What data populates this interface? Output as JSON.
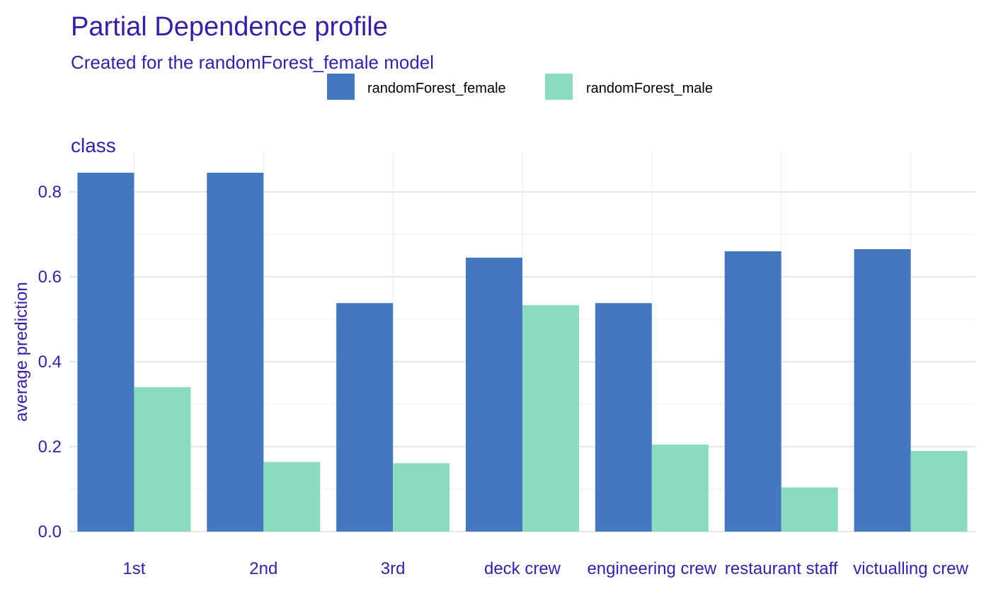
{
  "chart_data": {
    "type": "bar",
    "title": "Partial Dependence profile",
    "subtitle": "Created for the randomForest_female model",
    "facet_label": "class",
    "xlabel": "",
    "ylabel": "average prediction",
    "ylim": [
      0,
      0.88
    ],
    "yticks": [
      "0.0",
      "0.2",
      "0.4",
      "0.6",
      "0.8"
    ],
    "grid": true,
    "legend_position": "top",
    "categories": [
      "1st",
      "2nd",
      "3rd",
      "deck crew",
      "engineering crew",
      "restaurant staff",
      "victualling crew"
    ],
    "series": [
      {
        "name": "randomForest_female",
        "color": "#4378bf",
        "values": [
          0.845,
          0.845,
          0.538,
          0.645,
          0.538,
          0.66,
          0.665
        ]
      },
      {
        "name": "randomForest_male",
        "color": "#8bdcbe",
        "values": [
          0.34,
          0.164,
          0.161,
          0.533,
          0.205,
          0.104,
          0.19
        ]
      }
    ]
  }
}
